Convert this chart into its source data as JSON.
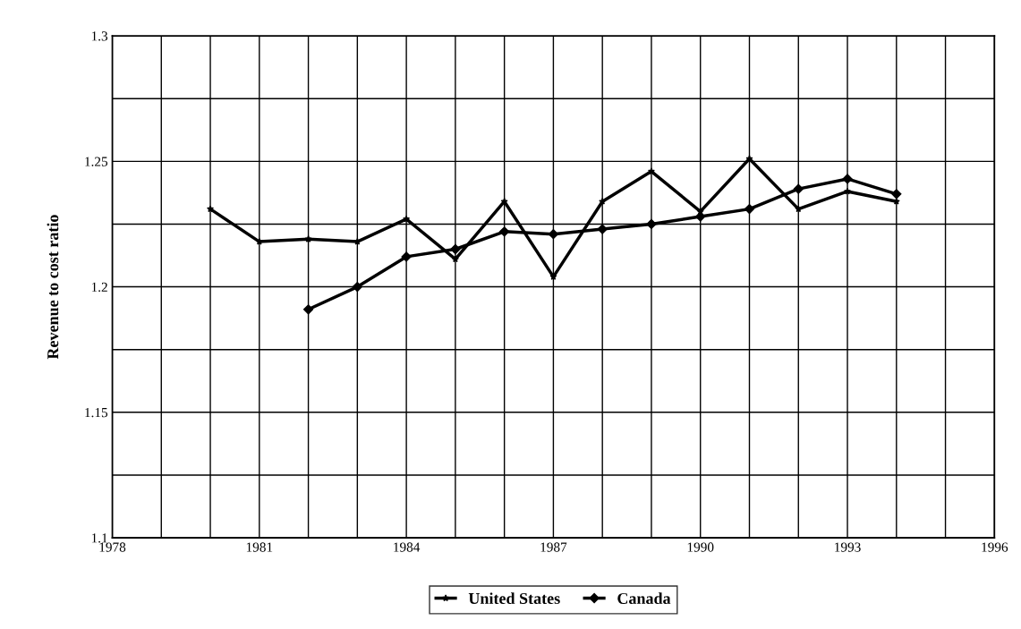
{
  "chart_data": {
    "type": "line",
    "ylabel": "Revenue to cost ratio",
    "x": [
      1980,
      1981,
      1982,
      1983,
      1984,
      1985,
      1986,
      1987,
      1988,
      1989,
      1990,
      1991,
      1992,
      1993,
      1994
    ],
    "series": [
      {
        "name": "United States",
        "color": "#000000",
        "marker": "star",
        "values": [
          1.231,
          1.218,
          1.219,
          1.218,
          1.227,
          1.211,
          1.234,
          1.204,
          1.234,
          1.246,
          1.23,
          1.251,
          1.231,
          1.238,
          1.234
        ]
      },
      {
        "name": "Canada",
        "color": "#000000",
        "marker": "diamond",
        "values": [
          null,
          null,
          1.191,
          1.2,
          1.212,
          1.215,
          1.222,
          1.221,
          1.223,
          1.225,
          1.228,
          1.231,
          1.239,
          1.243,
          1.237
        ]
      }
    ],
    "xlim": [
      1978,
      1996
    ],
    "xticks": [
      1978,
      {
        "value": 1979,
        "label": null
      },
      {
        "value": 1980,
        "label": null
      },
      1981,
      {
        "value": 1982,
        "label": null
      },
      {
        "value": 1983,
        "label": null
      },
      1984,
      {
        "value": 1985,
        "label": null
      },
      {
        "value": 1986,
        "label": null
      },
      1987,
      {
        "value": 1988,
        "label": null
      },
      {
        "value": 1989,
        "label": null
      },
      1990,
      {
        "value": 1991,
        "label": null
      },
      {
        "value": 1992,
        "label": null
      },
      1993,
      {
        "value": 1994,
        "label": null
      },
      {
        "value": 1995,
        "label": null
      },
      1996
    ],
    "ylim": [
      1.1,
      1.3
    ],
    "yticks": [
      1.1,
      {
        "value": 1.125,
        "label": null
      },
      1.15,
      {
        "value": 1.175,
        "label": null
      },
      1.2,
      {
        "value": 1.225,
        "label": null
      },
      1.25,
      {
        "value": 1.275,
        "label": null
      },
      1.3
    ],
    "grid": true,
    "legend": "bottom",
    "line_style": "solid"
  }
}
